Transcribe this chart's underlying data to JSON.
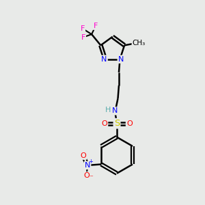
{
  "background_color": "#e8eae8",
  "atom_colors": {
    "C": "#000000",
    "H": "#5aacac",
    "N": "#0000ff",
    "O": "#ff0000",
    "S": "#cccc00",
    "F": "#ff00cc"
  },
  "bond_color": "#000000",
  "bond_width": 1.8,
  "dbo": 0.08,
  "fig_w": 3.0,
  "fig_h": 3.0,
  "dpi": 100
}
